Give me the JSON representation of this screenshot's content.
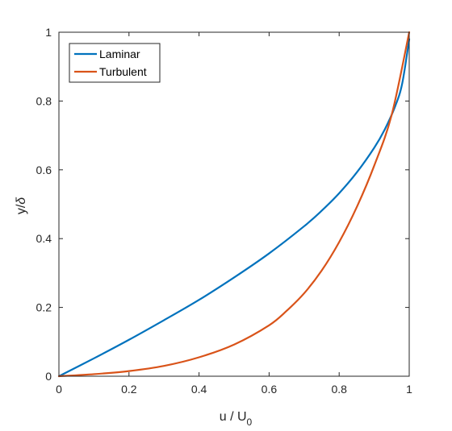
{
  "chart_data": {
    "type": "line",
    "title": "",
    "xlabel": "u / U",
    "xlabel_sub": "0",
    "ylabel": "y/",
    "ylabel_symbol": "δ",
    "xlim": [
      0,
      1
    ],
    "ylim": [
      0,
      1
    ],
    "xticks": [
      0,
      0.2,
      0.4,
      0.6,
      0.8,
      1
    ],
    "yticks": [
      0,
      0.2,
      0.4,
      0.6,
      0.8,
      1
    ],
    "xtick_labels": [
      "0",
      "0.2",
      "0.4",
      "0.6",
      "0.8",
      "1"
    ],
    "ytick_labels": [
      "0",
      "0.2",
      "0.4",
      "0.6",
      "0.8",
      "1"
    ],
    "grid": false,
    "box": true,
    "legend_position": "top-left",
    "series": [
      {
        "name": "Laminar",
        "color": "#0072BD",
        "x": [
          0,
          0.1,
          0.2,
          0.3,
          0.4,
          0.5,
          0.6,
          0.7,
          0.75,
          0.8,
          0.85,
          0.9,
          0.93,
          0.96,
          0.98,
          1.0
        ],
        "y": [
          0,
          0.052,
          0.106,
          0.163,
          0.222,
          0.287,
          0.357,
          0.436,
          0.481,
          0.532,
          0.592,
          0.664,
          0.717,
          0.785,
          0.851,
          0.98
        ]
      },
      {
        "name": "Turbulent",
        "color": "#D95319",
        "x": [
          0,
          0.1,
          0.2,
          0.3,
          0.4,
          0.5,
          0.6,
          0.65,
          0.7,
          0.75,
          0.8,
          0.85,
          0.9,
          0.95,
          1.0
        ],
        "y": [
          0,
          0.006,
          0.015,
          0.03,
          0.055,
          0.092,
          0.148,
          0.19,
          0.241,
          0.307,
          0.39,
          0.491,
          0.612,
          0.76,
          1.0
        ]
      }
    ]
  }
}
